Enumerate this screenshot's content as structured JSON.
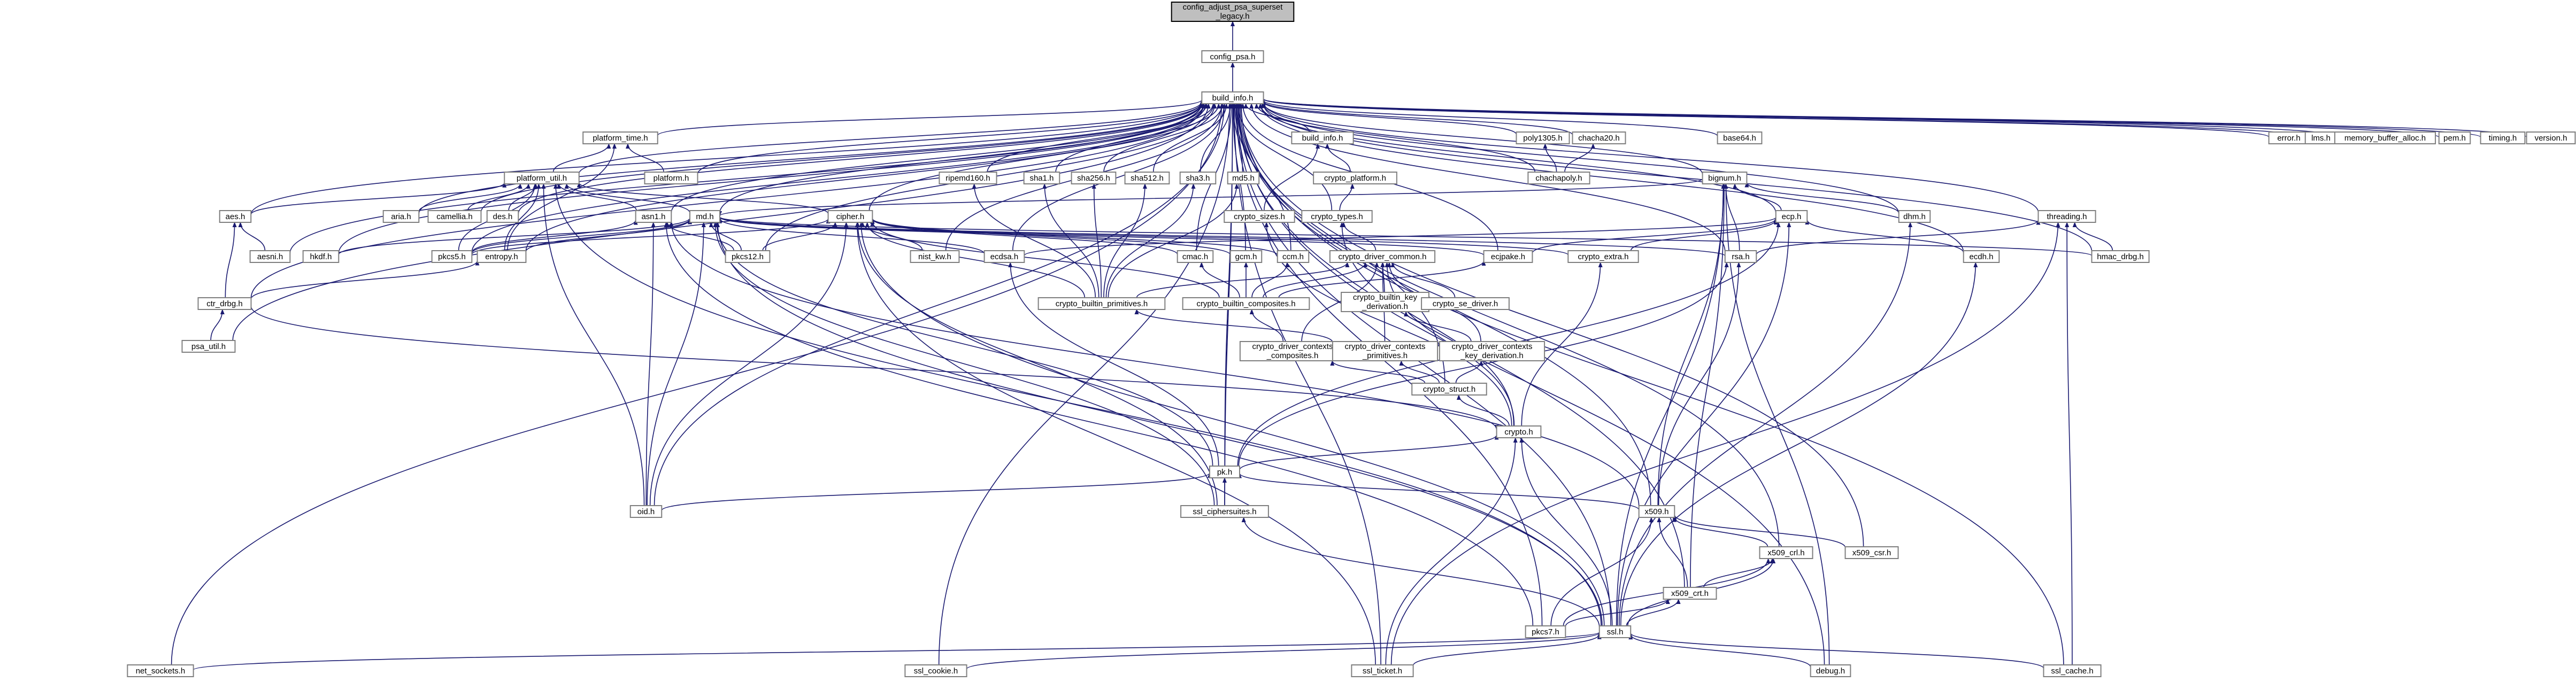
{
  "graph": {
    "nodes": [
      {
        "id": "config_adjust",
        "label": "config_adjust_psa_superset\n_legacy.h",
        "root": true
      },
      {
        "id": "config_psa",
        "label": "config_psa.h"
      },
      {
        "id": "build_info",
        "label": "build_info.h"
      },
      {
        "id": "platform_time",
        "label": "platform_time.h"
      },
      {
        "id": "platform",
        "label": "platform.h"
      },
      {
        "id": "platform_util",
        "label": "platform_util.h"
      },
      {
        "id": "aes",
        "label": "aes.h"
      },
      {
        "id": "aria",
        "label": "aria.h"
      },
      {
        "id": "camellia",
        "label": "camellia.h"
      },
      {
        "id": "des",
        "label": "des.h"
      },
      {
        "id": "asn1",
        "label": "asn1.h"
      },
      {
        "id": "md",
        "label": "md.h"
      },
      {
        "id": "aesni",
        "label": "aesni.h"
      },
      {
        "id": "hkdf",
        "label": "hkdf.h"
      },
      {
        "id": "pkcs5",
        "label": "pkcs5.h"
      },
      {
        "id": "entropy",
        "label": "entropy.h"
      },
      {
        "id": "pkcs12",
        "label": "pkcs12.h"
      },
      {
        "id": "ctr_drbg",
        "label": "ctr_drbg.h"
      },
      {
        "id": "psa_util",
        "label": "psa_util.h"
      },
      {
        "id": "cipher",
        "label": "cipher.h"
      },
      {
        "id": "nist_kw",
        "label": "nist_kw.h"
      },
      {
        "id": "ripemd160",
        "label": "ripemd160.h"
      },
      {
        "id": "sha1",
        "label": "sha1.h"
      },
      {
        "id": "sha256",
        "label": "sha256.h"
      },
      {
        "id": "sha512",
        "label": "sha512.h"
      },
      {
        "id": "sha3",
        "label": "sha3.h"
      },
      {
        "id": "md5",
        "label": "md5.h"
      },
      {
        "id": "ecdsa",
        "label": "ecdsa.h"
      },
      {
        "id": "cmac",
        "label": "cmac.h"
      },
      {
        "id": "gcm",
        "label": "gcm.h"
      },
      {
        "id": "ccm",
        "label": "ccm.h"
      },
      {
        "id": "build_info2",
        "label": "build_info.h"
      },
      {
        "id": "crypto_platform",
        "label": "crypto_platform.h"
      },
      {
        "id": "crypto_sizes",
        "label": "crypto_sizes.h"
      },
      {
        "id": "crypto_types",
        "label": "crypto_types.h"
      },
      {
        "id": "crypto_driver_common",
        "label": "crypto_driver_common.h"
      },
      {
        "id": "crypto_builtin_primitives",
        "label": "crypto_builtin_primitives.h"
      },
      {
        "id": "crypto_builtin_composites",
        "label": "crypto_builtin_composites.h"
      },
      {
        "id": "crypto_builtin_key_derivation",
        "label": "crypto_builtin_key\n_derivation.h"
      },
      {
        "id": "crypto_se_driver",
        "label": "crypto_se_driver.h"
      },
      {
        "id": "crypto_driver_contexts_composites",
        "label": "crypto_driver_contexts\n_composites.h"
      },
      {
        "id": "crypto_driver_contexts_primitives",
        "label": "crypto_driver_contexts\n_primitives.h"
      },
      {
        "id": "crypto_driver_contexts_key_derivation",
        "label": "crypto_driver_contexts\n_key_derivation.h"
      },
      {
        "id": "crypto_struct",
        "label": "crypto_struct.h"
      },
      {
        "id": "crypto",
        "label": "crypto.h"
      },
      {
        "id": "poly1305",
        "label": "poly1305.h"
      },
      {
        "id": "chacha20",
        "label": "chacha20.h"
      },
      {
        "id": "chachapoly",
        "label": "chachapoly.h"
      },
      {
        "id": "ecjpake",
        "label": "ecjpake.h"
      },
      {
        "id": "base64",
        "label": "base64.h"
      },
      {
        "id": "bignum",
        "label": "bignum.h"
      },
      {
        "id": "ecp",
        "label": "ecp.h"
      },
      {
        "id": "dhm",
        "label": "dhm.h"
      },
      {
        "id": "crypto_extra",
        "label": "crypto_extra.h"
      },
      {
        "id": "rsa",
        "label": "rsa.h"
      },
      {
        "id": "ecdh",
        "label": "ecdh.h"
      },
      {
        "id": "threading",
        "label": "threading.h"
      },
      {
        "id": "hmac_drbg",
        "label": "hmac_drbg.h"
      },
      {
        "id": "error",
        "label": "error.h"
      },
      {
        "id": "lms",
        "label": "lms.h"
      },
      {
        "id": "memory_buffer_alloc",
        "label": "memory_buffer_alloc.h"
      },
      {
        "id": "pem",
        "label": "pem.h"
      },
      {
        "id": "timing",
        "label": "timing.h"
      },
      {
        "id": "version",
        "label": "version.h"
      },
      {
        "id": "pk",
        "label": "pk.h"
      },
      {
        "id": "oid",
        "label": "oid.h"
      },
      {
        "id": "ssl_ciphersuites",
        "label": "ssl_ciphersuites.h"
      },
      {
        "id": "x509",
        "label": "x509.h"
      },
      {
        "id": "x509_crl",
        "label": "x509_crl.h"
      },
      {
        "id": "x509_csr",
        "label": "x509_csr.h"
      },
      {
        "id": "x509_crt",
        "label": "x509_crt.h"
      },
      {
        "id": "pkcs7",
        "label": "pkcs7.h"
      },
      {
        "id": "ssl",
        "label": "ssl.h"
      },
      {
        "id": "net_sockets",
        "label": "net_sockets.h"
      },
      {
        "id": "ssl_cookie",
        "label": "ssl_cookie.h"
      },
      {
        "id": "ssl_ticket",
        "label": "ssl_ticket.h"
      },
      {
        "id": "debug",
        "label": "debug.h"
      },
      {
        "id": "ssl_cache",
        "label": "ssl_cache.h"
      }
    ],
    "edges": [
      [
        "config_psa",
        "config_adjust"
      ],
      [
        "build_info",
        "config_psa"
      ],
      [
        "platform_time",
        "build_info"
      ],
      [
        "platform",
        "platform_time"
      ],
      [
        "platform_util",
        "platform_time"
      ],
      [
        "platform_util",
        "build_info"
      ],
      [
        "aes",
        "platform_util"
      ],
      [
        "aria",
        "platform_util"
      ],
      [
        "camellia",
        "platform_util"
      ],
      [
        "des",
        "platform_util"
      ],
      [
        "asn1",
        "platform_util"
      ],
      [
        "md",
        "platform_util"
      ],
      [
        "cipher",
        "platform_util"
      ],
      [
        "pkcs5",
        "platform_util"
      ],
      [
        "entropy",
        "platform_util"
      ],
      [
        "aes",
        "build_info"
      ],
      [
        "aria",
        "build_info"
      ],
      [
        "camellia",
        "build_info"
      ],
      [
        "des",
        "build_info"
      ],
      [
        "platform",
        "build_info"
      ],
      [
        "asn1",
        "build_info"
      ],
      [
        "md",
        "build_info"
      ],
      [
        "aesni",
        "aes"
      ],
      [
        "aesni",
        "build_info"
      ],
      [
        "hkdf",
        "md"
      ],
      [
        "hkdf",
        "build_info"
      ],
      [
        "pkcs5",
        "asn1"
      ],
      [
        "pkcs5",
        "md"
      ],
      [
        "pkcs5",
        "cipher"
      ],
      [
        "pkcs5",
        "build_info"
      ],
      [
        "entropy",
        "md"
      ],
      [
        "entropy",
        "build_info"
      ],
      [
        "entropy",
        "platform_time"
      ],
      [
        "pkcs12",
        "md"
      ],
      [
        "pkcs12",
        "cipher"
      ],
      [
        "pkcs12",
        "asn1"
      ],
      [
        "pkcs12",
        "build_info"
      ],
      [
        "ctr_drbg",
        "aes"
      ],
      [
        "ctr_drbg",
        "entropy"
      ],
      [
        "ctr_drbg",
        "build_info"
      ],
      [
        "ctr_drbg",
        "crypto"
      ],
      [
        "psa_util",
        "ctr_drbg"
      ],
      [
        "psa_util",
        "build_info"
      ],
      [
        "cipher",
        "build_info"
      ],
      [
        "nist_kw",
        "cipher"
      ],
      [
        "nist_kw",
        "build_info"
      ],
      [
        "ripemd160",
        "build_info"
      ],
      [
        "sha1",
        "build_info"
      ],
      [
        "sha256",
        "build_info"
      ],
      [
        "sha512",
        "build_info"
      ],
      [
        "sha3",
        "build_info"
      ],
      [
        "md5",
        "build_info"
      ],
      [
        "ecdsa",
        "ecp"
      ],
      [
        "ecdsa",
        "md"
      ],
      [
        "ecdsa",
        "build_info"
      ],
      [
        "cmac",
        "cipher"
      ],
      [
        "cmac",
        "build_info"
      ],
      [
        "gcm",
        "cipher"
      ],
      [
        "gcm",
        "build_info"
      ],
      [
        "ccm",
        "cipher"
      ],
      [
        "ccm",
        "build_info"
      ],
      [
        "build_info2",
        "build_info"
      ],
      [
        "crypto_platform",
        "build_info2"
      ],
      [
        "crypto_sizes",
        "build_info2"
      ],
      [
        "crypto_types",
        "crypto_platform"
      ],
      [
        "crypto_types",
        "build_info"
      ],
      [
        "crypto_driver_common",
        "crypto_types"
      ],
      [
        "crypto_builtin_primitives",
        "md5"
      ],
      [
        "crypto_builtin_primitives",
        "ripemd160"
      ],
      [
        "crypto_builtin_primitives",
        "sha1"
      ],
      [
        "crypto_builtin_primitives",
        "sha256"
      ],
      [
        "crypto_builtin_primitives",
        "sha512"
      ],
      [
        "crypto_builtin_primitives",
        "sha3"
      ],
      [
        "crypto_builtin_primitives",
        "cipher"
      ],
      [
        "crypto_builtin_primitives",
        "crypto_driver_common"
      ],
      [
        "crypto_builtin_composites",
        "cmac"
      ],
      [
        "crypto_builtin_composites",
        "gcm"
      ],
      [
        "crypto_builtin_composites",
        "ccm"
      ],
      [
        "crypto_builtin_composites",
        "ecjpake"
      ],
      [
        "crypto_builtin_composites",
        "crypto_driver_common"
      ],
      [
        "crypto_builtin_composites",
        "cipher"
      ],
      [
        "crypto_builtin_key_derivation",
        "crypto_driver_common"
      ],
      [
        "crypto_se_driver",
        "crypto_driver_common"
      ],
      [
        "crypto_driver_contexts_composites",
        "crypto_builtin_composites"
      ],
      [
        "crypto_driver_contexts_composites",
        "crypto_driver_common"
      ],
      [
        "crypto_driver_contexts_primitives",
        "crypto_builtin_primitives"
      ],
      [
        "crypto_driver_contexts_primitives",
        "crypto_driver_common"
      ],
      [
        "crypto_driver_contexts_key_derivation",
        "crypto_builtin_key_derivation"
      ],
      [
        "crypto_driver_contexts_key_derivation",
        "crypto_driver_common"
      ],
      [
        "crypto_struct",
        "crypto_driver_contexts_primitives"
      ],
      [
        "crypto_struct",
        "crypto_driver_contexts_composites"
      ],
      [
        "crypto_struct",
        "crypto_driver_contexts_key_derivation"
      ],
      [
        "crypto_struct",
        "build_info"
      ],
      [
        "crypto",
        "crypto_struct"
      ],
      [
        "crypto",
        "crypto_types"
      ],
      [
        "crypto",
        "crypto_sizes"
      ],
      [
        "crypto",
        "crypto_extra"
      ],
      [
        "crypto",
        "crypto_driver_common"
      ],
      [
        "poly1305",
        "build_info"
      ],
      [
        "chacha20",
        "build_info"
      ],
      [
        "chachapoly",
        "poly1305"
      ],
      [
        "chachapoly",
        "chacha20"
      ],
      [
        "chachapoly",
        "build_info"
      ],
      [
        "ecjpake",
        "ecp"
      ],
      [
        "ecjpake",
        "md"
      ],
      [
        "ecjpake",
        "build_info"
      ],
      [
        "base64",
        "build_info"
      ],
      [
        "bignum",
        "build_info"
      ],
      [
        "bignum",
        "md"
      ],
      [
        "ecp",
        "bignum"
      ],
      [
        "ecp",
        "build_info"
      ],
      [
        "dhm",
        "bignum"
      ],
      [
        "dhm",
        "build_info"
      ],
      [
        "crypto_extra",
        "ecp"
      ],
      [
        "crypto_extra",
        "md"
      ],
      [
        "rsa",
        "bignum"
      ],
      [
        "rsa",
        "md"
      ],
      [
        "rsa",
        "threading"
      ],
      [
        "rsa",
        "build_info"
      ],
      [
        "ecdh",
        "ecp"
      ],
      [
        "ecdh",
        "build_info"
      ],
      [
        "threading",
        "build_info"
      ],
      [
        "hmac_drbg",
        "md"
      ],
      [
        "hmac_drbg",
        "threading"
      ],
      [
        "hmac_drbg",
        "build_info"
      ],
      [
        "error",
        "build_info"
      ],
      [
        "lms",
        "build_info"
      ],
      [
        "memory_buffer_alloc",
        "build_info"
      ],
      [
        "pem",
        "build_info"
      ],
      [
        "timing",
        "build_info"
      ],
      [
        "version",
        "build_info"
      ],
      [
        "pk",
        "md"
      ],
      [
        "pk",
        "rsa"
      ],
      [
        "pk",
        "ecp"
      ],
      [
        "pk",
        "ecdsa"
      ],
      [
        "pk",
        "crypto"
      ],
      [
        "pk",
        "build_info"
      ],
      [
        "oid",
        "asn1"
      ],
      [
        "oid",
        "pk"
      ],
      [
        "oid",
        "md"
      ],
      [
        "oid",
        "cipher"
      ],
      [
        "oid",
        "build_info"
      ],
      [
        "oid",
        "platform_util"
      ],
      [
        "ssl_ciphersuites",
        "pk"
      ],
      [
        "ssl_ciphersuites",
        "md"
      ],
      [
        "ssl_ciphersuites",
        "cipher"
      ],
      [
        "ssl_ciphersuites",
        "build_info"
      ],
      [
        "x509",
        "asn1"
      ],
      [
        "x509",
        "pk"
      ],
      [
        "x509",
        "rsa"
      ],
      [
        "x509",
        "bignum"
      ],
      [
        "x509",
        "build_info"
      ],
      [
        "x509_crl",
        "x509"
      ],
      [
        "x509_crl",
        "build_info"
      ],
      [
        "x509_csr",
        "x509"
      ],
      [
        "x509_csr",
        "build_info"
      ],
      [
        "x509_crt",
        "x509"
      ],
      [
        "x509_crt",
        "x509_crl"
      ],
      [
        "x509_crt",
        "bignum"
      ],
      [
        "x509_crt",
        "build_info"
      ],
      [
        "pkcs7",
        "asn1"
      ],
      [
        "pkcs7",
        "x509"
      ],
      [
        "pkcs7",
        "x509_crt"
      ],
      [
        "pkcs7",
        "x509_crl"
      ],
      [
        "pkcs7",
        "build_info"
      ],
      [
        "ssl",
        "md"
      ],
      [
        "ssl",
        "cipher"
      ],
      [
        "ssl",
        "x509_crt"
      ],
      [
        "ssl",
        "x509_crl"
      ],
      [
        "ssl",
        "ssl_ciphersuites"
      ],
      [
        "ssl",
        "dhm"
      ],
      [
        "ssl",
        "ecdh"
      ],
      [
        "ssl",
        "ecp"
      ],
      [
        "ssl",
        "bignum"
      ],
      [
        "ssl",
        "crypto"
      ],
      [
        "ssl",
        "platform_util"
      ],
      [
        "ssl",
        "build_info"
      ],
      [
        "net_sockets",
        "ssl"
      ],
      [
        "net_sockets",
        "build_info"
      ],
      [
        "ssl_cookie",
        "ssl"
      ],
      [
        "ssl_cookie",
        "build_info"
      ],
      [
        "ssl_ticket",
        "ssl"
      ],
      [
        "ssl_ticket",
        "cipher"
      ],
      [
        "ssl_ticket",
        "threading"
      ],
      [
        "ssl_ticket",
        "crypto"
      ],
      [
        "ssl_ticket",
        "build_info"
      ],
      [
        "debug",
        "ssl"
      ],
      [
        "debug",
        "bignum"
      ],
      [
        "debug",
        "build_info"
      ],
      [
        "ssl_cache",
        "ssl"
      ],
      [
        "ssl_cache",
        "threading"
      ],
      [
        "ssl_cache",
        "build_info"
      ]
    ]
  }
}
